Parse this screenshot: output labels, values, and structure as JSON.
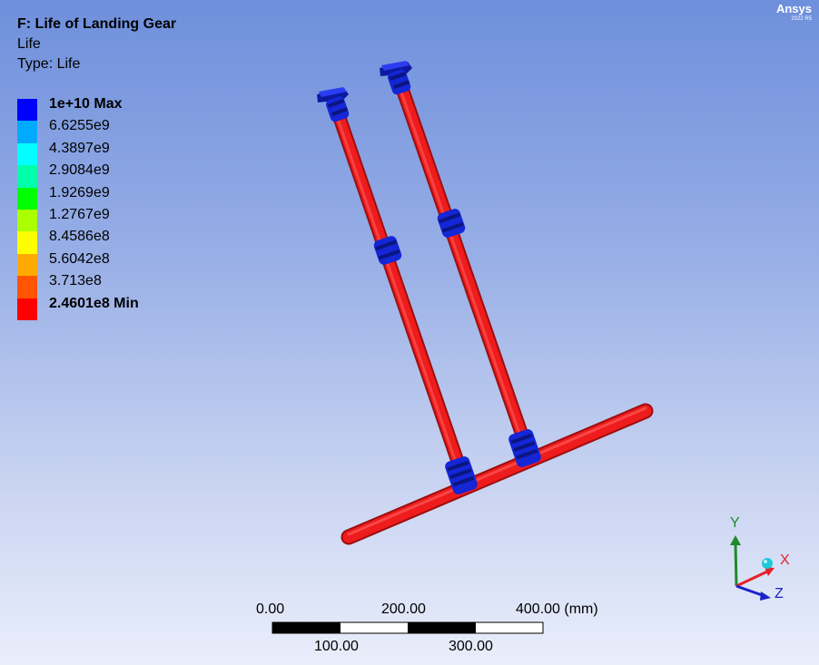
{
  "header": {
    "title": "F: Life of Landing Gear",
    "subtitle": "Life",
    "type_line": "Type: Life"
  },
  "legend": {
    "items": [
      {
        "label": "1e+10 Max",
        "color": "#0000ff",
        "bold": true
      },
      {
        "label": "6.6255e9",
        "color": "#00aaff",
        "bold": false
      },
      {
        "label": "4.3897e9",
        "color": "#00ffff",
        "bold": false
      },
      {
        "label": "2.9084e9",
        "color": "#00ffaa",
        "bold": false
      },
      {
        "label": "1.9269e9",
        "color": "#00ff00",
        "bold": false
      },
      {
        "label": "1.2767e9",
        "color": "#aaff00",
        "bold": false
      },
      {
        "label": "8.4586e8",
        "color": "#ffff00",
        "bold": false
      },
      {
        "label": "5.6042e8",
        "color": "#ffaa00",
        "bold": false
      },
      {
        "label": "3.713e8",
        "color": "#ff5500",
        "bold": false
      },
      {
        "label": "2.4601e8 Min",
        "color": "#ff0000",
        "bold": true
      }
    ]
  },
  "brand": {
    "name": "Ansys",
    "version": "2022 R5"
  },
  "scale_bar": {
    "top_labels": [
      "0.00",
      "200.00",
      "400.00 (mm)"
    ],
    "bottom_labels": [
      "100.00",
      "300.00"
    ]
  },
  "triad": {
    "x_label": "X",
    "y_label": "Y",
    "z_label": "Z",
    "x_color": "#e8202a",
    "y_color": "#1e8a2a",
    "z_color": "#1a23c8"
  },
  "model": {
    "tube_color": "#ee1c1c",
    "fitting_color": "#1426d6"
  }
}
